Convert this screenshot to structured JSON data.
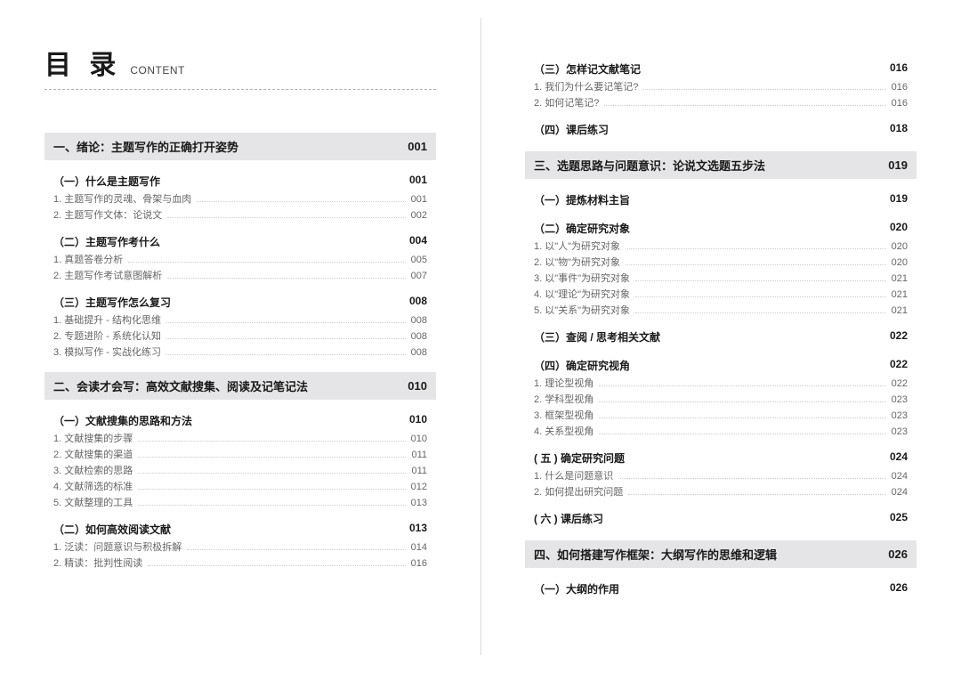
{
  "header": {
    "main": "目 录",
    "sub": "CONTENT"
  },
  "left": [
    {
      "type": "chapter",
      "title": "一、绪论：主题写作的正确打开姿势",
      "page": "001"
    },
    {
      "type": "section",
      "title": "（一）什么是主题写作",
      "page": "001"
    },
    {
      "type": "item",
      "title": "1. 主题写作的灵魂、骨架与血肉",
      "page": "001"
    },
    {
      "type": "item",
      "title": "2. 主题写作文体：论说文",
      "page": "002"
    },
    {
      "type": "section",
      "title": "（二）主题写作考什么",
      "page": "004"
    },
    {
      "type": "item",
      "title": "1. 真题答卷分析",
      "page": "005"
    },
    {
      "type": "item",
      "title": "2. 主题写作考试意图解析",
      "page": "007"
    },
    {
      "type": "section",
      "title": "（三）主题写作怎么复习",
      "page": "008"
    },
    {
      "type": "item",
      "title": "1. 基础提升 - 结构化思维",
      "page": "008"
    },
    {
      "type": "item",
      "title": "2. 专题进阶 - 系统化认知",
      "page": "008"
    },
    {
      "type": "item",
      "title": "3. 模拟写作 - 实战化练习",
      "page": "008"
    },
    {
      "type": "chapter",
      "title": "二、会读才会写：高效文献搜集、阅读及记笔记法",
      "page": "010"
    },
    {
      "type": "section",
      "title": "（一）文献搜集的思路和方法",
      "page": "010"
    },
    {
      "type": "item",
      "title": "1. 文献搜集的步骤",
      "page": "010"
    },
    {
      "type": "item",
      "title": "2. 文献搜集的渠道",
      "page": "011"
    },
    {
      "type": "item",
      "title": "3. 文献检索的思路",
      "page": "011"
    },
    {
      "type": "item",
      "title": "4. 文献筛选的标准",
      "page": "012"
    },
    {
      "type": "item",
      "title": "5. 文献整理的工具",
      "page": "013"
    },
    {
      "type": "section",
      "title": "（二）如何高效阅读文献",
      "page": "013"
    },
    {
      "type": "item",
      "title": "1. 泛读：问题意识与积极拆解",
      "page": "014"
    },
    {
      "type": "item",
      "title": "2. 精读：批判性阅读",
      "page": "016"
    }
  ],
  "right": [
    {
      "type": "section",
      "title": "（三）怎样记文献笔记",
      "page": "016"
    },
    {
      "type": "item",
      "title": "1. 我们为什么要记笔记?",
      "page": "016"
    },
    {
      "type": "item",
      "title": "2. 如何记笔记?",
      "page": "016"
    },
    {
      "type": "section",
      "title": "（四）课后练习",
      "page": "018"
    },
    {
      "type": "chapter",
      "title": "三、选题思路与问题意识：论说文选题五步法",
      "page": "019"
    },
    {
      "type": "section",
      "title": "（一）提炼材料主旨",
      "page": "019"
    },
    {
      "type": "section",
      "title": "（二）确定研究对象",
      "page": "020"
    },
    {
      "type": "item",
      "title": "1. 以\"人\"为研究对象",
      "page": "020"
    },
    {
      "type": "item",
      "title": "2. 以\"物\"为研究对象",
      "page": "020"
    },
    {
      "type": "item",
      "title": "3. 以\"事件\"为研究对象",
      "page": "021"
    },
    {
      "type": "item",
      "title": "4. 以\"理论\"为研究对象",
      "page": "021"
    },
    {
      "type": "item",
      "title": "5. 以\"关系\"为研究对象",
      "page": "021"
    },
    {
      "type": "section",
      "title": "（三）查阅 / 思考相关文献",
      "page": "022"
    },
    {
      "type": "section",
      "title": "（四）确定研究视角",
      "page": "022"
    },
    {
      "type": "item",
      "title": "1. 理论型视角",
      "page": "022"
    },
    {
      "type": "item",
      "title": "2. 学科型视角",
      "page": "023"
    },
    {
      "type": "item",
      "title": "3. 框架型视角",
      "page": "023"
    },
    {
      "type": "item",
      "title": "4. 关系型视角",
      "page": "023"
    },
    {
      "type": "section",
      "title": "( 五 ) 确定研究问题",
      "page": "024"
    },
    {
      "type": "item",
      "title": "1. 什么是问题意识",
      "page": "024"
    },
    {
      "type": "item",
      "title": "2. 如何提出研究问题",
      "page": "024"
    },
    {
      "type": "section",
      "title": "( 六 ) 课后练习",
      "page": "025"
    },
    {
      "type": "chapter",
      "title": "四、如何搭建写作框架：大纲写作的思维和逻辑",
      "page": "026"
    },
    {
      "type": "section",
      "title": "（一）大纲的作用",
      "page": "026"
    }
  ]
}
